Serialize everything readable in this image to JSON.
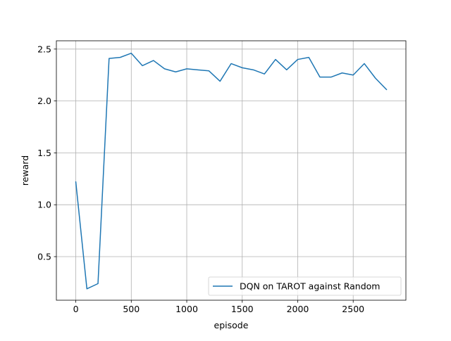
{
  "chart_data": {
    "type": "line",
    "title": "",
    "xlabel": "episode",
    "ylabel": "reward",
    "xlim": [
      -175,
      2975
    ],
    "ylim": [
      0.08,
      2.58
    ],
    "xticks": [
      0,
      500,
      1000,
      1500,
      2000,
      2500
    ],
    "yticks": [
      0.5,
      1.0,
      1.5,
      2.0,
      2.5
    ],
    "ytick_labels": [
      "0.5",
      "1.0",
      "1.5",
      "2.0",
      "2.5"
    ],
    "grid": true,
    "legend_position": "lower-right",
    "series": [
      {
        "name": "DQN on TAROT against Random",
        "color": "#1f77b4",
        "x": [
          0,
          100,
          200,
          300,
          400,
          500,
          600,
          700,
          800,
          900,
          1000,
          1100,
          1200,
          1300,
          1400,
          1500,
          1600,
          1700,
          1800,
          1900,
          2000,
          2100,
          2200,
          2300,
          2400,
          2500,
          2600,
          2700,
          2800
        ],
        "y": [
          1.22,
          0.19,
          0.24,
          2.41,
          2.42,
          2.46,
          2.34,
          2.39,
          2.31,
          2.28,
          2.31,
          2.3,
          2.29,
          2.19,
          2.36,
          2.32,
          2.3,
          2.26,
          2.4,
          2.3,
          2.4,
          2.42,
          2.23,
          2.23,
          2.27,
          2.25,
          2.36,
          2.22,
          2.11
        ]
      }
    ]
  }
}
